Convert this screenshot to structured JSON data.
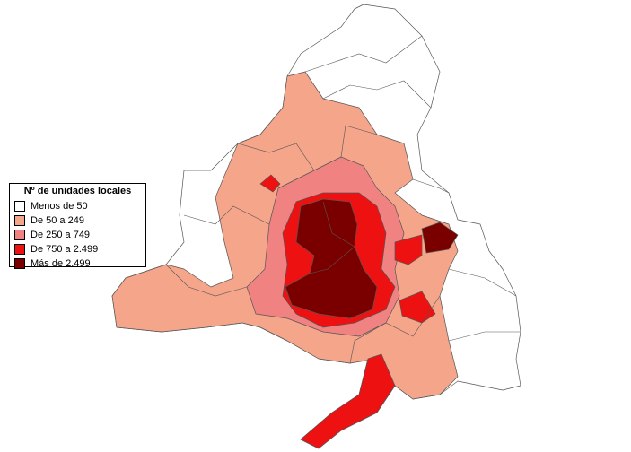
{
  "legend": {
    "title": "Nº de unidades locales",
    "items": [
      {
        "label": "Menos de 50",
        "color": "#ffffff"
      },
      {
        "label": "De 50 a 249",
        "color": "#f4a58a"
      },
      {
        "label": "De 250 a 749",
        "color": "#f08282"
      },
      {
        "label": "De 750 a 2.499",
        "color": "#ee1111"
      },
      {
        "label": "Más de 2.499",
        "color": "#7a0000"
      }
    ]
  }
}
